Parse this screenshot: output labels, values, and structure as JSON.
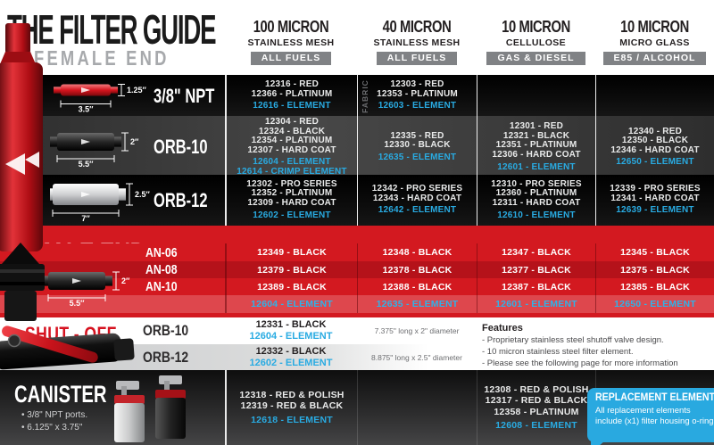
{
  "header": {
    "title": "THE FILTER GUIDE",
    "subtitle": "FEMALE END",
    "columns": [
      {
        "micron": "100 MICRON",
        "media": "STAINLESS MESH",
        "fuel": "ALL FUELS"
      },
      {
        "micron": "40 MICRON",
        "media": "STAINLESS MESH",
        "fuel": "ALL FUELS"
      },
      {
        "micron": "10 MICRON",
        "media": "CELLULOSE",
        "fuel": "GAS & DIESEL"
      },
      {
        "micron": "10 MICRON",
        "media": "MICRO GLASS",
        "fuel": "E85 / ALCOHOL"
      }
    ]
  },
  "female_section": {
    "rows": [
      {
        "label": "3/8\" NPT",
        "dim_height": "1.25\"",
        "dim_length": "3.5\"",
        "filter_color": "red",
        "theme": "black",
        "cells": [
          {
            "white": [
              "12316 - RED",
              "12366 - PLATINUM"
            ],
            "blue": [
              "12616 - ELEMENT"
            ],
            "vertical_note": ""
          },
          {
            "white": [
              "12303 - RED",
              "12353 - PLATINUM"
            ],
            "blue": [
              "12603 - ELEMENT"
            ],
            "vertical_note": "FABRIC"
          },
          {
            "white": [],
            "blue": [],
            "vertical_note": ""
          },
          {
            "white": [],
            "blue": [],
            "vertical_note": ""
          }
        ]
      },
      {
        "label": "ORB-10",
        "dim_height": "2\"",
        "dim_length": "5.5\"",
        "filter_color": "black",
        "theme": "gray",
        "cells": [
          {
            "white": [
              "12304 - RED",
              "12324 - BLACK",
              "12354 - PLATINUM",
              "12307 - HARD COAT"
            ],
            "blue": [
              "12604 - ELEMENT",
              "12614 - CRIMP ELEMENT"
            ],
            "vertical_note": ""
          },
          {
            "white": [
              "12335 - RED",
              "12330 - BLACK"
            ],
            "blue": [
              "12635 - ELEMENT"
            ],
            "vertical_note": ""
          },
          {
            "white": [
              "12301 - RED",
              "12321 - BLACK",
              "12351 - PLATINUM",
              "12306 - HARD COAT"
            ],
            "blue": [
              "12601 - ELEMENT"
            ],
            "vertical_note": ""
          },
          {
            "white": [
              "12340 - RED",
              "12350 - BLACK",
              "12346 - HARD COAT"
            ],
            "blue": [
              "12650 - ELEMENT"
            ],
            "vertical_note": ""
          }
        ]
      },
      {
        "label": "ORB-12",
        "dim_height": "2.5\"",
        "dim_length": "7\"",
        "filter_color": "silver",
        "theme": "black",
        "cells": [
          {
            "white": [
              "12302 - PRO SERIES",
              "12352 - PLATINUM",
              "12309 - HARD COAT"
            ],
            "blue": [
              "12602 - ELEMENT"
            ],
            "vertical_note": ""
          },
          {
            "white": [
              "12342 - PRO SERIES",
              "12343 - HARD COAT"
            ],
            "blue": [
              "12642 - ELEMENT"
            ],
            "vertical_note": ""
          },
          {
            "white": [
              "12310 - PRO SERIES",
              "12360 - PLATINUM",
              "12311 - HARD COAT"
            ],
            "blue": [
              "12610 - ELEMENT"
            ],
            "vertical_note": ""
          },
          {
            "white": [
              "12339 - PRO SERIES",
              "12341 - HARD COAT"
            ],
            "blue": [
              "12639 - ELEMENT"
            ],
            "vertical_note": ""
          }
        ]
      }
    ]
  },
  "male_section": {
    "title": "MALE END",
    "dim_height": "2\"",
    "dim_length": "5.5\"",
    "rows": [
      {
        "label": "AN-06",
        "style": "bright",
        "cells": [
          "12349 - BLACK",
          "12348 - BLACK",
          "12347 - BLACK",
          "12345 - BLACK"
        ]
      },
      {
        "label": "AN-08",
        "style": "dark",
        "cells": [
          "12379 - BLACK",
          "12378 - BLACK",
          "12377 - BLACK",
          "12375 - BLACK"
        ]
      },
      {
        "label": "AN-10",
        "style": "bright",
        "cells": [
          "12389 - BLACK",
          "12388 - BLACK",
          "12387 - BLACK",
          "12385 - BLACK"
        ]
      },
      {
        "label": "",
        "style": "element",
        "cells": [
          "12604 - ELEMENT",
          "12635 - ELEMENT",
          "12601 - ELEMENT",
          "12650 - ELEMENT"
        ]
      }
    ]
  },
  "shutoff_section": {
    "title": "SHUT - OFF",
    "rows": [
      {
        "label": "ORB-10",
        "part": "12331 - BLACK",
        "element": "12604 - ELEMENT",
        "size": "7.375\" long x 2\" diameter"
      },
      {
        "label": "ORB-12",
        "part": "12332 - BLACK",
        "element": "12602 - ELEMENT",
        "size": "8.875\" long x 2.5\" diameter"
      }
    ],
    "features": {
      "heading": "Features",
      "items": [
        "- Proprietary stainless steel shutoff valve design.",
        "- 10 micron stainless steel filter element.",
        "- Please see the following page for more information"
      ]
    }
  },
  "canister_section": {
    "title": "CANISTER",
    "bullets": [
      "• 3/8\" NPT ports.",
      "• 6.125\" x 3.75\""
    ],
    "cells": [
      {
        "white": [
          "12318 - RED & POLISH",
          "12319 - RED & BLACK"
        ],
        "blue": [
          "12618 - ELEMENT"
        ]
      },
      {
        "white": [],
        "blue": []
      },
      {
        "white": [
          "12308 - RED & POLISH",
          "12317 - RED & BLACK",
          "12358 - PLATINUM"
        ],
        "blue": [
          "12608 - ELEMENT"
        ]
      }
    ],
    "replacement_box": {
      "title": "REPLACEMENT ELEMENTS",
      "body": "All replacement elements include (x1) filter housing o-ring"
    }
  },
  "colors": {
    "accent_red": "#d6151e",
    "accent_red_dark": "#b5121a",
    "accent_red_light": "#de474d",
    "element_blue": "#29abe2",
    "badge_gray": "#808285",
    "subtitle_gray": "#a7a9ac"
  }
}
